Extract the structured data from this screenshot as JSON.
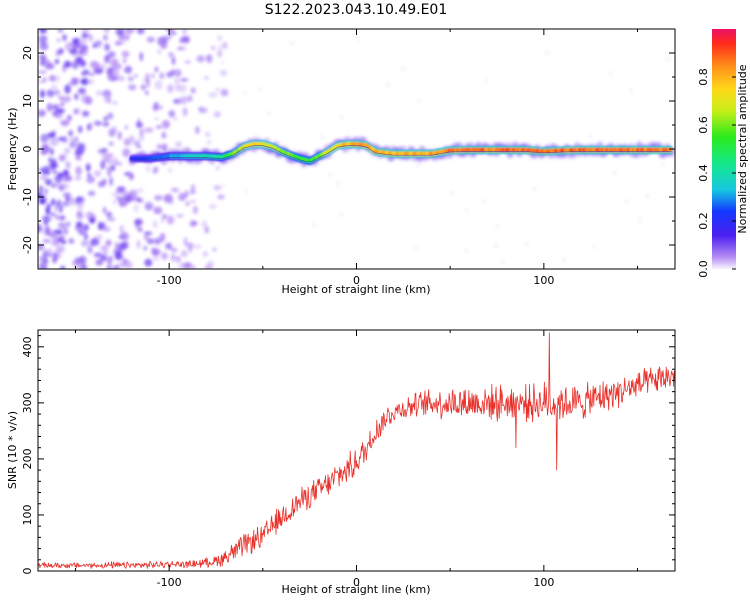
{
  "title": "S122.2023.043.10.49.E01",
  "colors": {
    "trace": "#e8302a",
    "track": "#3a2f9e",
    "scatter": "#8a4ff0"
  },
  "chart_data": [
    {
      "type": "heatmap",
      "xlabel": "Height of straight line (km)",
      "ylabel": "Frequency (Hz)",
      "xlim": [
        -170,
        170
      ],
      "ylim": [
        -25,
        25
      ],
      "xticks": [
        -100,
        0,
        100
      ],
      "xtick_labels": [
        "-100",
        "0",
        "100"
      ],
      "yticks": [
        -20,
        -10,
        0,
        10,
        20
      ],
      "ytick_labels": [
        "-20",
        "-10",
        "0",
        "10",
        "20"
      ],
      "colorbar": {
        "label": "Normalized spectral amplitude",
        "range": [
          0,
          1
        ],
        "ticks": [
          0.0,
          0.2,
          0.4,
          0.6,
          0.8
        ],
        "tick_labels": [
          "0.0",
          "0.2",
          "0.4",
          "0.6",
          "0.8"
        ]
      },
      "ridge": {
        "x": [
          -120,
          -110,
          -100,
          -90,
          -80,
          -72,
          -66,
          -60,
          -55,
          -50,
          -45,
          -40,
          -35,
          -30,
          -25,
          -20,
          -15,
          -10,
          -5,
          0,
          5,
          10,
          15,
          20,
          30,
          40,
          50,
          60,
          70,
          80,
          90,
          100,
          110,
          120,
          130,
          140,
          150,
          160,
          168
        ],
        "y": [
          -2,
          -2,
          -1.5,
          -1.5,
          -1.5,
          -1.7,
          -1,
          0.5,
          1,
          1,
          0.5,
          -0.5,
          -1.3,
          -2,
          -2.5,
          -1.5,
          -0.5,
          0.7,
          1,
          1,
          0.8,
          -0.5,
          -0.8,
          -1,
          -1,
          -1,
          -0.3,
          -0.2,
          -0.2,
          -0.2,
          -0.2,
          -0.5,
          -0.3,
          -0.2,
          -0.2,
          -0.2,
          -0.2,
          -0.2,
          -0.2
        ],
        "amplitude": [
          0.2,
          0.25,
          0.3,
          0.35,
          0.4,
          0.45,
          0.6,
          0.7,
          0.75,
          0.75,
          0.7,
          0.65,
          0.6,
          0.55,
          0.55,
          0.6,
          0.7,
          0.75,
          0.8,
          0.85,
          0.85,
          0.8,
          0.8,
          0.8,
          0.8,
          0.85,
          0.9,
          0.9,
          0.9,
          0.9,
          0.9,
          0.9,
          0.9,
          0.9,
          0.9,
          0.9,
          0.9,
          0.9,
          0.9
        ]
      },
      "noise_region_x": [
        -170,
        -80
      ]
    },
    {
      "type": "line",
      "xlabel": "Height of straight line (km)",
      "ylabel": "SNR (10 * v/v)",
      "xlim": [
        -170,
        170
      ],
      "ylim": [
        0,
        430
      ],
      "xticks": [
        -100,
        0,
        100
      ],
      "xtick_labels": [
        "-100",
        "0",
        "100"
      ],
      "yticks": [
        0,
        100,
        200,
        300,
        400
      ],
      "ytick_labels": [
        "0",
        "100",
        "200",
        "300",
        "400"
      ],
      "series": [
        {
          "x": [
            -170,
            -160,
            -150,
            -140,
            -130,
            -120,
            -110,
            -100,
            -90,
            -80,
            -75,
            -70,
            -65,
            -60,
            -55,
            -50,
            -45,
            -40,
            -35,
            -30,
            -25,
            -20,
            -15,
            -10,
            -5,
            0,
            5,
            10,
            15,
            20,
            25,
            30,
            40,
            50,
            60,
            70,
            80,
            90,
            100,
            110,
            120,
            130,
            140,
            150,
            160,
            170
          ],
          "values": [
            10,
            10,
            10,
            10,
            10,
            10,
            11,
            12,
            12,
            15,
            18,
            25,
            35,
            45,
            55,
            60,
            80,
            95,
            110,
            125,
            135,
            145,
            155,
            170,
            180,
            195,
            215,
            250,
            270,
            285,
            290,
            295,
            300,
            300,
            300,
            300,
            300,
            300,
            300,
            300,
            300,
            310,
            320,
            330,
            340,
            350
          ],
          "noise": [
            5,
            5,
            5,
            5,
            6,
            6,
            6,
            6,
            6,
            8,
            10,
            15,
            18,
            20,
            20,
            20,
            22,
            22,
            22,
            22,
            22,
            22,
            22,
            25,
            25,
            25,
            25,
            25,
            22,
            20,
            20,
            20,
            25,
            28,
            30,
            30,
            30,
            30,
            35,
            32,
            30,
            28,
            26,
            25,
            24,
            24
          ]
        }
      ],
      "spikes": [
        {
          "x": 103,
          "value": 425
        },
        {
          "x": 107,
          "value": 180
        },
        {
          "x": 85,
          "value": 220
        }
      ]
    }
  ]
}
